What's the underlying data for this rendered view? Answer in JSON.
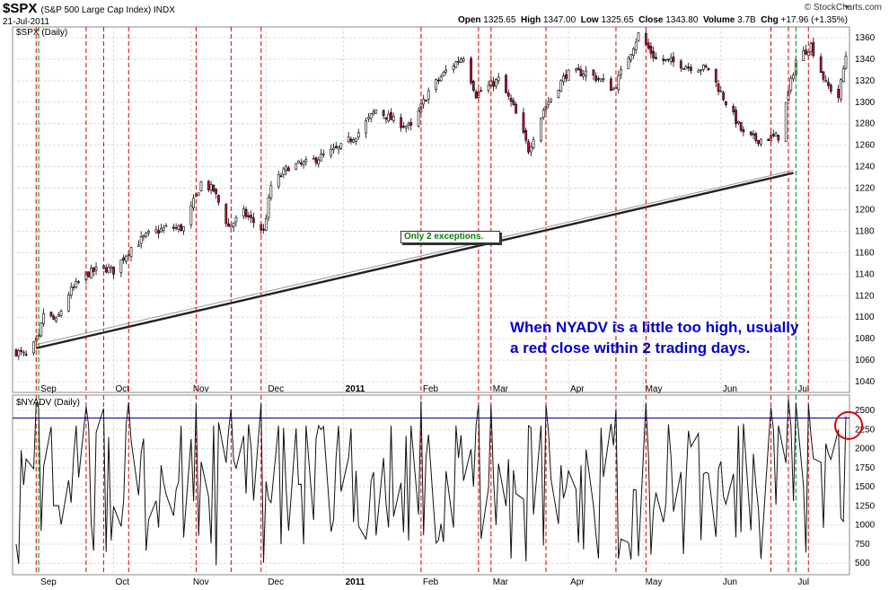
{
  "header": {
    "symbol": "$SPX",
    "description": "(S&P 500 Large Cap Index) INDX",
    "date": "21-Jul-2011",
    "logo": "© StockCharts.com",
    "open_label": "Open",
    "open": "1325.65",
    "high_label": "High",
    "high": "1347.00",
    "low_label": "Low",
    "low": "1325.65",
    "close_label": "Close",
    "close": "1343.80",
    "volume_label": "Volume",
    "volume": "3.7B",
    "chg_label": "Chg",
    "chg": "+17.96 (+1.35%)"
  },
  "annotations": {
    "note_line1": "When NYADV is a little too high, usually",
    "note_line2": "a red close within 2 trading days.",
    "exceptions_label": "Only 2 exceptions."
  },
  "colors": {
    "up_candle": "#ffffff",
    "down_candle": "#cc0033",
    "red_marker": "#dd0000",
    "green_marker": "#008800",
    "threshold_line": "#000099",
    "note_text": "#0000cc",
    "circle": "#dd0000"
  },
  "chart_data": [
    {
      "type": "candlestick",
      "title": "$SPX (Daily)",
      "ylim": [
        1030,
        1370
      ],
      "yticks": [
        1040,
        1060,
        1080,
        1100,
        1120,
        1140,
        1160,
        1180,
        1200,
        1220,
        1240,
        1260,
        1280,
        1300,
        1320,
        1340,
        1360
      ],
      "x_tick_labels": [
        "Sep",
        "Oct",
        "Nov",
        "Dec",
        "2011",
        "Feb",
        "Mar",
        "Apr",
        "May",
        "Jun",
        "Jul"
      ],
      "date_range": [
        "2010-08-23",
        "2011-07-21"
      ],
      "close_path": [
        [
          "2010-08-23",
          1068
        ],
        [
          "2010-08-27",
          1064
        ],
        [
          "2010-09-01",
          1080
        ],
        [
          "2010-09-03",
          1104
        ],
        [
          "2010-09-08",
          1096
        ],
        [
          "2010-09-13",
          1122
        ],
        [
          "2010-09-20",
          1140
        ],
        [
          "2010-09-27",
          1146
        ],
        [
          "2010-10-01",
          1143
        ],
        [
          "2010-10-08",
          1165
        ],
        [
          "2010-10-15",
          1177
        ],
        [
          "2010-10-22",
          1183
        ],
        [
          "2010-10-29",
          1183
        ],
        [
          "2010-11-05",
          1225
        ],
        [
          "2010-11-10",
          1218
        ],
        [
          "2010-11-16",
          1184
        ],
        [
          "2010-11-22",
          1197
        ],
        [
          "2010-11-30",
          1180
        ],
        [
          "2010-12-03",
          1222
        ],
        [
          "2010-12-10",
          1240
        ],
        [
          "2010-12-17",
          1243
        ],
        [
          "2010-12-31",
          1258
        ],
        [
          "2011-01-07",
          1272
        ],
        [
          "2011-01-14",
          1293
        ],
        [
          "2011-01-21",
          1283
        ],
        [
          "2011-01-28",
          1276
        ],
        [
          "2011-02-04",
          1310
        ],
        [
          "2011-02-11",
          1329
        ],
        [
          "2011-02-18",
          1343
        ],
        [
          "2011-02-23",
          1307
        ],
        [
          "2011-03-04",
          1321
        ],
        [
          "2011-03-10",
          1295
        ],
        [
          "2011-03-16",
          1256
        ],
        [
          "2011-03-22",
          1293
        ],
        [
          "2011-03-31",
          1326
        ],
        [
          "2011-04-08",
          1328
        ],
        [
          "2011-04-15",
          1319
        ],
        [
          "2011-04-19",
          1312
        ],
        [
          "2011-04-29",
          1363
        ],
        [
          "2011-05-06",
          1340
        ],
        [
          "2011-05-13",
          1337
        ],
        [
          "2011-05-20",
          1333
        ],
        [
          "2011-05-27",
          1331
        ],
        [
          "2011-06-03",
          1300
        ],
        [
          "2011-06-10",
          1270
        ],
        [
          "2011-06-15",
          1265
        ],
        [
          "2011-06-24",
          1268
        ],
        [
          "2011-07-01",
          1339
        ],
        [
          "2011-07-07",
          1353
        ],
        [
          "2011-07-13",
          1317
        ],
        [
          "2011-07-18",
          1305
        ],
        [
          "2011-07-21",
          1343.8
        ]
      ],
      "trend_line": {
        "from": [
          "2010-08-31",
          1072
        ],
        "to": [
          "2011-06-30",
          1235
        ]
      }
    },
    {
      "type": "line",
      "title": "$NYADV (Daily)",
      "ylim": [
        350,
        2700
      ],
      "yticks": [
        500,
        750,
        1000,
        1250,
        1500,
        1750,
        2000,
        2250,
        2500
      ],
      "threshold": 2400,
      "x_tick_labels": [
        "Sep",
        "Oct",
        "Nov",
        "Dec",
        "2011",
        "Feb",
        "Mar",
        "Apr",
        "May",
        "Jun",
        "Jul"
      ],
      "date_range": [
        "2010-08-23",
        "2011-07-21"
      ],
      "peak_dates_red": [
        "2010-08-31",
        "2010-09-20",
        "2010-09-27",
        "2010-10-07",
        "2010-11-03",
        "2010-11-17",
        "2010-11-29",
        "2011-02-01",
        "2011-02-24",
        "2011-03-01",
        "2011-03-23",
        "2011-04-20",
        "2011-05-02",
        "2011-06-21",
        "2011-06-28",
        "2011-07-06"
      ],
      "peak_dates_green": [
        "2010-09-01",
        "2011-07-01"
      ]
    }
  ]
}
